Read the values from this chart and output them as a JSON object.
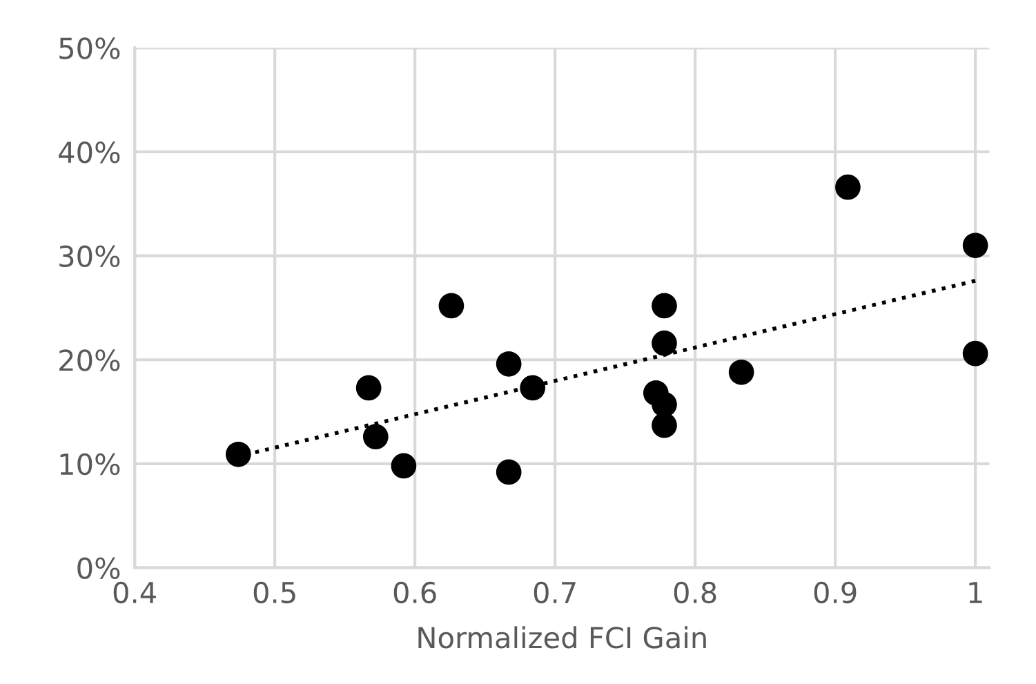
{
  "chart_data": {
    "type": "scatter",
    "xlabel": "Normalized FCI Gain",
    "x": [
      0.474,
      0.567,
      0.572,
      0.592,
      0.626,
      0.667,
      0.667,
      0.684,
      0.772,
      0.778,
      0.778,
      0.778,
      0.778,
      0.833,
      0.909,
      1.0,
      1.0
    ],
    "series": [
      {
        "color": "#000000",
        "marker": "circle",
        "values": [
          10.9,
          17.3,
          12.6,
          9.8,
          25.2,
          19.6,
          9.2,
          17.3,
          16.8,
          25.2,
          21.6,
          15.7,
          13.7,
          18.8,
          36.6,
          31.0,
          20.6
        ]
      },
      {
        "type": "line",
        "color": "#000000",
        "line_style": "dotted",
        "x": [
          0.486,
          1.0
        ],
        "values": [
          11.1,
          27.6
        ]
      }
    ],
    "xlim": [
      0.4,
      1.01
    ],
    "xticks": [
      0.4,
      0.5,
      0.6,
      0.7,
      0.8,
      0.9,
      1
    ],
    "ylim": [
      0,
      50
    ],
    "yticks": [
      {
        "value": 0,
        "label": "0%"
      },
      {
        "value": 10,
        "label": "10%"
      },
      {
        "value": 20,
        "label": "20%"
      },
      {
        "value": 30,
        "label": "30%"
      },
      {
        "value": 40,
        "label": "40%"
      },
      {
        "value": 50,
        "label": "50%"
      }
    ],
    "grid": true
  }
}
